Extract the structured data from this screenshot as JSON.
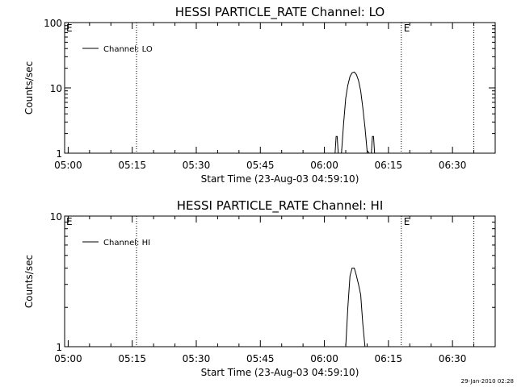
{
  "chart_data": [
    {
      "type": "line",
      "title": "HESSI PARTICLE_RATE Channel: LO",
      "xlabel": "Start Time (23-Aug-03 04:59:10)",
      "ylabel": "Counts/sec",
      "yscale": "log",
      "ylim": [
        1,
        100
      ],
      "yticks": [
        "1",
        "10",
        "100"
      ],
      "xticks": [
        "05:00",
        "05:15",
        "05:30",
        "05:45",
        "06:00",
        "06:15",
        "06:30"
      ],
      "legend": "Channel: LO",
      "markers": [
        {
          "label": "",
          "time": "05:16"
        },
        {
          "label": "E",
          "time": "06:18"
        },
        {
          "label": "",
          "time": "06:35"
        }
      ],
      "edge_label": "E",
      "series": [
        {
          "name": "Channel: LO",
          "x": [
            "06:02:30",
            "06:02:45",
            "06:03:00",
            "06:03:15",
            "06:04:00",
            "06:04:30",
            "06:05:00",
            "06:05:30",
            "06:06:00",
            "06:06:30",
            "06:07:00",
            "06:07:30",
            "06:08:00",
            "06:08:30",
            "06:09:00",
            "06:09:30",
            "06:10:00",
            "06:10:30",
            "06:11:00",
            "06:11:15",
            "06:11:30",
            "06:11:45",
            "06:12:00",
            "06:12:15"
          ],
          "y": [
            1,
            1.8,
            1.8,
            1,
            1,
            2.8,
            7,
            11,
            15,
            17,
            17.5,
            16,
            13,
            9,
            5,
            2.5,
            1.1,
            1,
            1,
            1.8,
            1.8,
            1,
            1,
            1
          ]
        }
      ]
    },
    {
      "type": "line",
      "title": "HESSI PARTICLE_RATE Channel: HI",
      "xlabel": "Start Time (23-Aug-03 04:59:10)",
      "ylabel": "Counts/sec",
      "yscale": "log",
      "ylim": [
        1,
        10
      ],
      "yticks": [
        "1",
        "10"
      ],
      "xticks": [
        "05:00",
        "05:15",
        "05:30",
        "05:45",
        "06:00",
        "06:15",
        "06:30"
      ],
      "legend": "Channel: HI",
      "markers": [
        {
          "label": "",
          "time": "05:16"
        },
        {
          "label": "E",
          "time": "06:18"
        },
        {
          "label": "",
          "time": "06:35"
        }
      ],
      "edge_label": "E",
      "series": [
        {
          "name": "Channel: HI",
          "x": [
            "06:05:00",
            "06:05:30",
            "06:06:00",
            "06:06:30",
            "06:07:00",
            "06:07:30",
            "06:08:00",
            "06:08:30",
            "06:09:00",
            "06:09:30"
          ],
          "y": [
            1,
            2,
            3.5,
            4,
            4,
            3.5,
            3,
            2.5,
            1.5,
            1
          ]
        }
      ]
    }
  ],
  "footer": {
    "timestamp": "29-Jan-2010 02:28"
  }
}
